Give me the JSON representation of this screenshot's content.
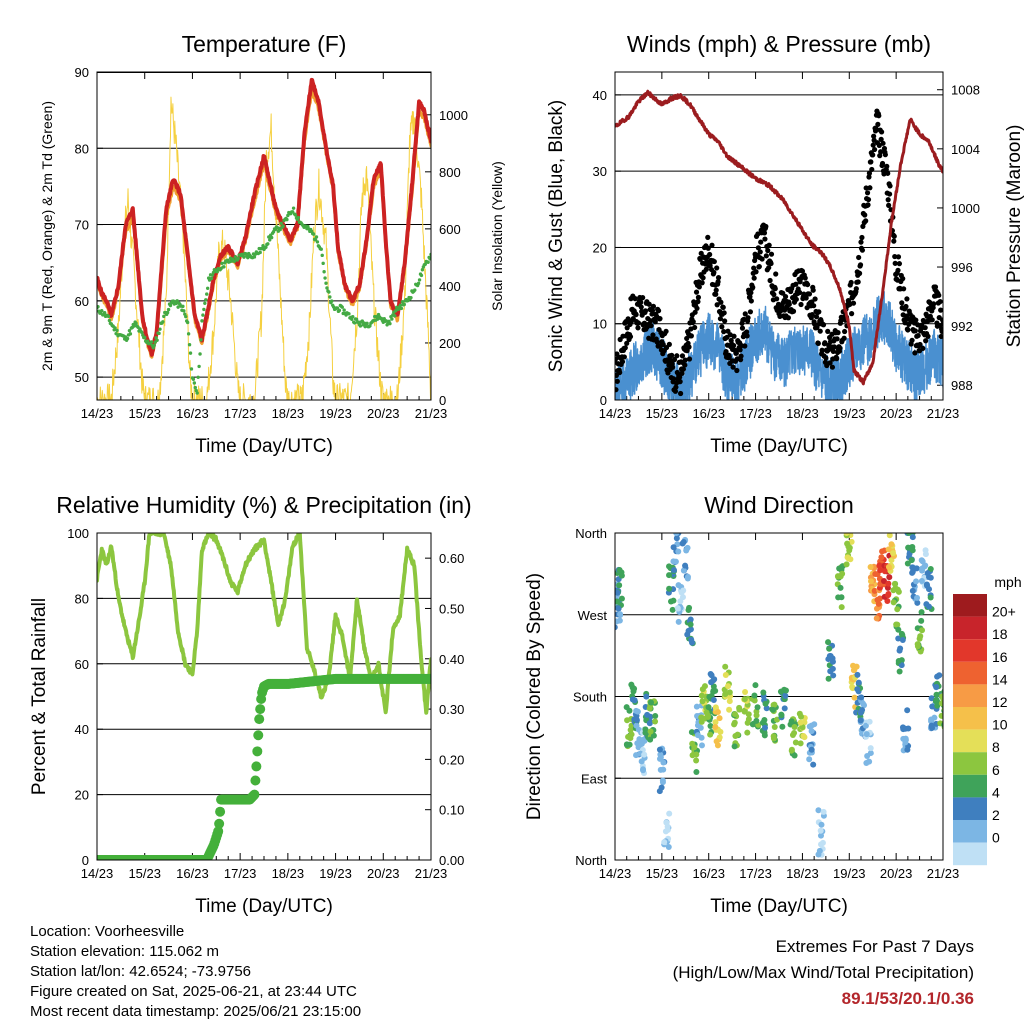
{
  "chart_data": [
    {
      "type": "line",
      "title": "Temperature (F)",
      "xlabel": "Time (Day/UTC)",
      "ylabel": "2m & 9m T (Red, Orange) & 2m Td (Green)",
      "ylabel_right": "Solar Insolation (Yellow)",
      "x_ticks": [
        "14/23",
        "15/23",
        "16/23",
        "17/23",
        "18/23",
        "19/23",
        "20/23",
        "21/23"
      ],
      "xlim": [
        0,
        7
      ],
      "ylim": [
        47,
        90
      ],
      "y_ticks": [
        50,
        60,
        70,
        80,
        90
      ],
      "ylim_right": [
        0,
        1150
      ],
      "y_ticks_right": [
        0,
        200,
        400,
        600,
        800,
        1000
      ],
      "grid": "horizontal",
      "series": [
        {
          "color": "#cc2222",
          "axis": "left",
          "style": "line",
          "x": [
            0,
            0.1,
            0.2,
            0.3,
            0.45,
            0.6,
            0.75,
            0.85,
            0.95,
            1.05,
            1.15,
            1.25,
            1.35,
            1.45,
            1.6,
            1.75,
            1.9,
            2.05,
            2.2,
            2.3,
            2.45,
            2.6,
            2.75,
            2.85,
            2.95,
            3.1,
            3.3,
            3.5,
            3.75,
            3.9,
            4.05,
            4.2,
            4.35,
            4.5,
            4.65,
            4.8,
            4.95,
            5.05,
            5.2,
            5.35,
            5.5,
            5.65,
            5.8,
            5.95,
            6.05,
            6.15,
            6.3,
            6.45,
            6.6,
            6.75,
            6.85,
            7.0
          ],
          "y": [
            63,
            61,
            60,
            58,
            62,
            70,
            72,
            65,
            58,
            55,
            53,
            56,
            64,
            72,
            76,
            74,
            66,
            58,
            55,
            58,
            63,
            66,
            67,
            66,
            65,
            68,
            74,
            79,
            72,
            70,
            68,
            70,
            82,
            89,
            86,
            80,
            75,
            67,
            62,
            60,
            62,
            68,
            76,
            78,
            68,
            60,
            58,
            65,
            75,
            86,
            85,
            81
          ]
        },
        {
          "color": "#f0a030",
          "axis": "left",
          "style": "line",
          "x": [
            0,
            0.1,
            0.2,
            0.3,
            0.45,
            0.6,
            0.75,
            0.85,
            0.95,
            1.05,
            1.15,
            1.25,
            1.35,
            1.45,
            1.6,
            1.75,
            1.9,
            2.05,
            2.2,
            2.3,
            2.45,
            2.6,
            2.75,
            2.85,
            2.95,
            3.1,
            3.3,
            3.5,
            3.75,
            3.9,
            4.05,
            4.2,
            4.35,
            4.5,
            4.65,
            4.8,
            4.95,
            5.05,
            5.2,
            5.35,
            5.5,
            5.65,
            5.8,
            5.95,
            6.05,
            6.15,
            6.3,
            6.45,
            6.6,
            6.75,
            6.85,
            7.0
          ],
          "y": [
            62.5,
            60.5,
            59.5,
            57.5,
            61.5,
            69,
            71,
            64.5,
            57.5,
            54.5,
            52.5,
            55.5,
            63,
            71,
            75,
            73,
            65.5,
            57.5,
            54.5,
            57.5,
            62.5,
            65.5,
            66.5,
            65.5,
            64.5,
            67.5,
            73,
            78,
            71.5,
            69.5,
            67.5,
            69.5,
            81,
            87.5,
            85,
            79.5,
            74.5,
            66.5,
            61.5,
            59.5,
            61.5,
            67.5,
            75,
            77,
            67.5,
            59.5,
            57.5,
            64.5,
            74,
            85,
            84,
            80.5
          ]
        },
        {
          "color": "#44aa44",
          "axis": "left",
          "style": "dots",
          "x": [
            0,
            0.2,
            0.4,
            0.6,
            0.8,
            1.0,
            1.2,
            1.4,
            1.6,
            1.8,
            1.9,
            2.0,
            2.1,
            2.2,
            2.35,
            2.5,
            2.7,
            2.9,
            3.1,
            3.3,
            3.5,
            3.7,
            3.9,
            4.1,
            4.3,
            4.5,
            4.7,
            4.8,
            4.95,
            5.1,
            5.3,
            5.5,
            5.7,
            5.9,
            6.1,
            6.3,
            6.5,
            6.7,
            6.9,
            7.0
          ],
          "y": [
            59,
            58,
            56,
            55,
            57,
            55,
            54,
            58,
            60,
            59,
            57,
            50,
            48,
            57,
            63,
            64,
            65,
            65.5,
            66,
            66,
            67,
            69,
            70,
            72,
            70,
            69,
            67,
            62,
            59,
            59,
            58,
            57,
            57,
            58,
            57,
            59,
            60,
            62,
            65,
            66
          ]
        },
        {
          "color": "#f5d040",
          "axis": "right",
          "style": "line",
          "x": [
            0,
            0.3,
            0.45,
            0.55,
            0.65,
            0.8,
            0.95,
            1.0,
            1.3,
            1.45,
            1.55,
            1.65,
            1.8,
            1.95,
            2.0,
            2.3,
            2.45,
            2.55,
            2.65,
            2.8,
            2.95,
            3.0,
            3.3,
            3.45,
            3.55,
            3.65,
            3.8,
            3.95,
            4.0,
            4.3,
            4.45,
            4.55,
            4.65,
            4.8,
            4.95,
            5.0,
            5.3,
            5.45,
            5.55,
            5.65,
            5.8,
            5.95,
            6.0,
            6.3,
            6.45,
            6.55,
            6.65,
            6.8,
            6.95,
            7.0
          ],
          "y": [
            0,
            0,
            250,
            550,
            700,
            400,
            50,
            0,
            0,
            350,
            1050,
            900,
            600,
            80,
            0,
            0,
            250,
            500,
            550,
            350,
            40,
            0,
            0,
            300,
            850,
            950,
            500,
            60,
            0,
            0,
            250,
            600,
            750,
            550,
            60,
            0,
            0,
            300,
            700,
            800,
            350,
            40,
            0,
            0,
            350,
            900,
            1000,
            700,
            200,
            0
          ]
        },
        {
          "color": "#000000",
          "axis": "left",
          "style": "line",
          "x": [
            0,
            7
          ],
          "y": [
            90,
            90
          ]
        }
      ]
    },
    {
      "type": "scatter",
      "title": "Winds (mph) & Pressure (mb)",
      "xlabel": "Time (Day/UTC)",
      "ylabel": "Sonic Wind & Gust (Blue, Black)",
      "ylabel_right": "Station Pressure (Maroon)",
      "x_ticks": [
        "14/23",
        "15/23",
        "16/23",
        "17/23",
        "18/23",
        "19/23",
        "20/23",
        "21/23"
      ],
      "xlim": [
        0,
        7
      ],
      "ylim": [
        0,
        43
      ],
      "y_ticks": [
        0,
        10,
        20,
        30,
        40
      ],
      "ylim_right": [
        987,
        1009.2
      ],
      "y_ticks_right": [
        988,
        992,
        996,
        1000,
        1004,
        1008
      ],
      "grid": "horizontal",
      "wind_speed": {
        "x": [
          0,
          0.2,
          0.4,
          0.6,
          0.8,
          1.0,
          1.2,
          1.4,
          1.6,
          1.8,
          2.0,
          2.2,
          2.4,
          2.6,
          2.8,
          3.0,
          3.2,
          3.4,
          3.6,
          3.8,
          4.0,
          4.2,
          4.4,
          4.6,
          4.8,
          5.0,
          5.2,
          5.4,
          5.6,
          5.8,
          6.0,
          6.2,
          6.4,
          6.6,
          6.8,
          7.0
        ],
        "y": [
          1,
          2,
          4,
          6,
          7,
          5,
          2,
          1,
          3,
          6,
          8,
          7,
          3,
          2,
          5,
          8,
          9,
          6,
          5,
          6,
          7,
          6,
          3,
          2,
          3,
          5,
          7,
          8,
          10,
          11,
          7,
          5,
          3,
          4,
          6,
          5
        ]
      },
      "gust": {
        "x": [
          0,
          0.2,
          0.4,
          0.6,
          0.8,
          1.0,
          1.2,
          1.4,
          1.6,
          1.8,
          2.0,
          2.2,
          2.4,
          2.6,
          2.8,
          3.0,
          3.2,
          3.4,
          3.6,
          3.8,
          4.0,
          4.2,
          4.4,
          4.6,
          4.8,
          5.0,
          5.2,
          5.4,
          5.6,
          5.8,
          6.0,
          6.2,
          6.4,
          6.6,
          6.8,
          7.0
        ],
        "y": [
          3,
          8,
          12,
          11,
          10,
          9,
          4,
          3,
          8,
          16,
          20,
          14,
          7,
          6,
          10,
          19,
          21,
          15,
          12,
          14,
          15,
          13,
          8,
          6,
          8,
          12,
          18,
          28,
          36,
          30,
          18,
          12,
          8,
          9,
          13,
          10
        ]
      },
      "pressure": {
        "x": [
          0,
          0.3,
          0.5,
          0.7,
          1.0,
          1.2,
          1.4,
          1.6,
          1.8,
          2.0,
          2.2,
          2.4,
          2.6,
          2.8,
          3.0,
          3.3,
          3.6,
          3.9,
          4.2,
          4.4,
          4.6,
          4.8,
          5.0,
          5.1,
          5.3,
          5.5,
          5.7,
          5.9,
          6.1,
          6.3,
          6.5,
          6.7,
          6.9,
          7.0
        ],
        "y": [
          1005.5,
          1006.2,
          1007.2,
          1007.8,
          1007.0,
          1007.4,
          1007.6,
          1007.0,
          1006.0,
          1005.0,
          1004.5,
          1003.5,
          1003.0,
          1002.5,
          1002.0,
          1001.5,
          1000.5,
          999.0,
          997.5,
          997.0,
          996.0,
          994.5,
          992.0,
          989.0,
          988.2,
          989.5,
          994.0,
          999.0,
          1003.0,
          1006.0,
          1005.0,
          1004.5,
          1003.0,
          1002.5
        ]
      }
    },
    {
      "type": "line",
      "title": "Relative Humidity (%) & Precipitation (in)",
      "xlabel": "Time (Day/UTC)",
      "ylabel": "Percent & Total Rainfall",
      "x_ticks": [
        "14/23",
        "15/23",
        "16/23",
        "17/23",
        "18/23",
        "19/23",
        "20/23",
        "21/23"
      ],
      "xlim": [
        0,
        7
      ],
      "ylim": [
        0,
        100
      ],
      "y_ticks": [
        0,
        20,
        40,
        60,
        80,
        100
      ],
      "ylim_right": [
        0,
        0.65
      ],
      "y_ticks_right": [
        0,
        0.1,
        0.2,
        0.3,
        0.4,
        0.5,
        0.6
      ],
      "y_tick_labels_right": [
        "0.00",
        "0.10",
        "0.20",
        "0.30",
        "0.40",
        "0.50",
        "0.60"
      ],
      "grid": "horizontal",
      "series": [
        {
          "color": "#8cc63f",
          "axis": "left",
          "style": "line",
          "x": [
            0,
            0.1,
            0.2,
            0.3,
            0.45,
            0.6,
            0.75,
            0.9,
            1.0,
            1.1,
            1.25,
            1.4,
            1.55,
            1.7,
            1.85,
            2.0,
            2.1,
            2.2,
            2.35,
            2.5,
            2.65,
            2.8,
            2.95,
            3.1,
            3.3,
            3.5,
            3.65,
            3.8,
            3.95,
            4.1,
            4.25,
            4.4,
            4.55,
            4.7,
            4.85,
            5.0,
            5.15,
            5.3,
            5.45,
            5.6,
            5.75,
            5.9,
            6.05,
            6.2,
            6.35,
            6.5,
            6.65,
            6.8,
            6.9,
            7.0
          ],
          "y": [
            86,
            95,
            90,
            96,
            80,
            70,
            62,
            75,
            85,
            100,
            100,
            100,
            90,
            70,
            60,
            57,
            70,
            95,
            100,
            98,
            92,
            85,
            82,
            90,
            95,
            98,
            85,
            72,
            80,
            96,
            100,
            65,
            58,
            50,
            55,
            75,
            68,
            55,
            80,
            65,
            55,
            60,
            45,
            70,
            75,
            95,
            90,
            60,
            45,
            62
          ]
        },
        {
          "color": "#44b03a",
          "axis": "right",
          "style": "line",
          "x": [
            0,
            1.0,
            1.5,
            2.0,
            2.3,
            2.45,
            2.55,
            2.6,
            3.2,
            3.3,
            3.35,
            3.4,
            3.45,
            3.5,
            3.6,
            4.0,
            5.0,
            6.0,
            7.0
          ],
          "y": [
            0,
            0,
            0,
            0,
            0,
            0.03,
            0.06,
            0.12,
            0.12,
            0.13,
            0.2,
            0.28,
            0.33,
            0.345,
            0.35,
            0.35,
            0.36,
            0.36,
            0.36
          ]
        }
      ]
    },
    {
      "type": "scatter",
      "title": "Wind Direction",
      "xlabel": "Time (Day/UTC)",
      "ylabel": "Direction (Colored By Speed)",
      "x_ticks": [
        "14/23",
        "15/23",
        "16/23",
        "17/23",
        "18/23",
        "19/23",
        "20/23",
        "21/23"
      ],
      "xlim": [
        0,
        7
      ],
      "ylim": [
        0,
        360
      ],
      "y_ticks": [
        0,
        90,
        180,
        270,
        360
      ],
      "y_tick_labels": [
        "North",
        "East",
        "South",
        "West",
        "North"
      ],
      "grid": "horizontal",
      "colorbar_title": "mph",
      "colorbar_labels": [
        "20+",
        "18",
        "16",
        "14",
        "12",
        "10",
        "8",
        "6",
        "4",
        "2",
        "0"
      ],
      "colorbar_colors": [
        "#9e1b1e",
        "#c8242b",
        "#e2372b",
        "#ee6230",
        "#f79b45",
        "#f5c04a",
        "#e4df58",
        "#8cc63f",
        "#3fa35a",
        "#3f7fbf",
        "#7cb6e4",
        "#bfe0f5"
      ],
      "points_x": [
        0.05,
        0.1,
        0.3,
        0.4,
        0.5,
        0.6,
        0.7,
        0.8,
        1.0,
        1.1,
        1.2,
        1.3,
        1.4,
        1.5,
        1.6,
        1.7,
        1.8,
        1.9,
        2.0,
        2.1,
        2.2,
        2.4,
        2.6,
        2.8,
        3.0,
        3.2,
        3.4,
        3.6,
        3.8,
        4.0,
        4.2,
        4.4,
        4.6,
        4.8,
        5.0,
        5.1,
        5.2,
        5.3,
        5.4,
        5.5,
        5.6,
        5.7,
        5.8,
        5.9,
        6.0,
        6.1,
        6.2,
        6.3,
        6.4,
        6.5,
        6.6,
        6.7,
        6.8,
        6.9,
        7.0
      ],
      "points_y": [
        280,
        300,
        150,
        170,
        140,
        120,
        160,
        150,
        100,
        30,
        300,
        350,
        280,
        330,
        260,
        120,
        150,
        170,
        160,
        180,
        150,
        190,
        150,
        160,
        170,
        160,
        150,
        170,
        140,
        150,
        130,
        30,
        220,
        300,
        340,
        190,
        180,
        160,
        130,
        300,
        290,
        320,
        310,
        340,
        280,
        230,
        140,
        350,
        300,
        250,
        320,
        300,
        170,
        180,
        170
      ],
      "points_speed": [
        4,
        6,
        8,
        6,
        4,
        2,
        6,
        8,
        4,
        2,
        6,
        4,
        2,
        4,
        6,
        8,
        4,
        10,
        8,
        6,
        12,
        10,
        8,
        10,
        8,
        6,
        8,
        6,
        8,
        10,
        4,
        2,
        6,
        8,
        10,
        12,
        6,
        4,
        2,
        14,
        16,
        18,
        20,
        12,
        8,
        6,
        4,
        6,
        4,
        8,
        2,
        6,
        4,
        6,
        8
      ]
    }
  ],
  "info": {
    "location": "Location: Voorheesville",
    "elevation": "Station elevation: 115.062 m",
    "latlon": "Station lat/lon: 42.6524; -73.9756",
    "created": "Figure created on Sat, 2025-06-21, at 23:44 UTC",
    "recent": "Most recent data timestamp: 2025/06/21 23:15:00"
  },
  "extremes": {
    "title": "Extremes For Past 7 Days",
    "subtitle": "(High/Low/Max Wind/Total Precipitation)",
    "values": "89.1/53/20.1/0.36"
  }
}
